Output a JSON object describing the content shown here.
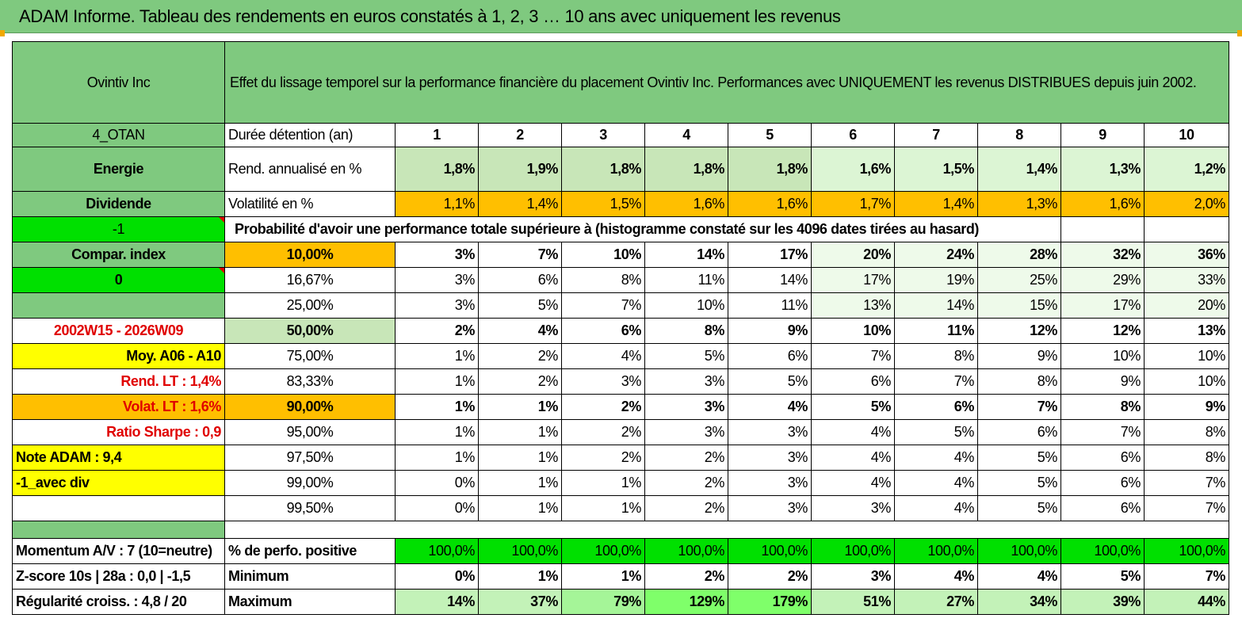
{
  "title": "ADAM Informe. Tableau des rendements en euros constatés à 1, 2, 3 … 10 ans avec uniquement les revenus",
  "colors": {
    "header_green": "#7fc97f",
    "bright_green": "#00e000",
    "orange": "#ffbf00",
    "yellow": "#ffff00",
    "red": "#e00000"
  },
  "header": {
    "company": "Ovintiv Inc",
    "description": "Effet du lissage temporel sur la performance financière du placement Ovintiv Inc. Performances avec UNIQUEMENT les revenus DISTRIBUES depuis juin 2002."
  },
  "left": {
    "code": "4_OTAN",
    "sector": "Energie",
    "type": "Dividende",
    "value_a": "-1",
    "compar": "Compar. index",
    "value_b": "0",
    "period": "2002W15 - 2026W09",
    "moy": "Moy. A06 - A10",
    "rend_lt": "Rend. LT :   1,4%",
    "volat_lt": "Volat. LT :   1,6%",
    "sharpe": "Ratio Sharpe :    0,9",
    "note": "Note ADAM : 9,4",
    "avec_div": "-1_avec div",
    "momentum": "Momentum A/V : 7 (10=neutre)",
    "zscore": "Z-score 10s | 28a : 0,0 | -1,5",
    "regularite": "Régularité croiss. : 4,8 / 20"
  },
  "labels": {
    "duree": "Durée détention (an)",
    "rend": "Rend. annualisé en %",
    "volat": "Volatilité en %",
    "proba": "Probabilité d'avoir une performance totale supérieure à (histogramme constaté sur les 4096 dates tirées au hasard)",
    "perf_pos": "% de perfo. positive",
    "minimum": "Minimum",
    "maximum": "Maximum"
  },
  "years": [
    "1",
    "2",
    "3",
    "4",
    "5",
    "6",
    "7",
    "8",
    "9",
    "10"
  ],
  "rend": [
    "1,8%",
    "1,9%",
    "1,8%",
    "1,8%",
    "1,8%",
    "1,6%",
    "1,5%",
    "1,4%",
    "1,3%",
    "1,2%"
  ],
  "volat": [
    "1,1%",
    "1,4%",
    "1,5%",
    "1,6%",
    "1,6%",
    "1,7%",
    "1,4%",
    "1,3%",
    "1,6%",
    "2,0%"
  ],
  "proba_rows": [
    {
      "pct": "10,00%",
      "values": [
        "3%",
        "7%",
        "10%",
        "14%",
        "17%",
        "20%",
        "24%",
        "28%",
        "32%",
        "36%"
      ]
    },
    {
      "pct": "16,67%",
      "values": [
        "3%",
        "6%",
        "8%",
        "11%",
        "14%",
        "17%",
        "19%",
        "25%",
        "29%",
        "33%"
      ]
    },
    {
      "pct": "25,00%",
      "values": [
        "3%",
        "5%",
        "7%",
        "10%",
        "11%",
        "13%",
        "14%",
        "15%",
        "17%",
        "20%"
      ]
    },
    {
      "pct": "50,00%",
      "values": [
        "2%",
        "4%",
        "6%",
        "8%",
        "9%",
        "10%",
        "11%",
        "12%",
        "12%",
        "13%"
      ]
    },
    {
      "pct": "75,00%",
      "values": [
        "1%",
        "2%",
        "4%",
        "5%",
        "6%",
        "7%",
        "8%",
        "9%",
        "10%",
        "10%"
      ]
    },
    {
      "pct": "83,33%",
      "values": [
        "1%",
        "2%",
        "3%",
        "3%",
        "5%",
        "6%",
        "7%",
        "8%",
        "9%",
        "10%"
      ]
    },
    {
      "pct": "90,00%",
      "values": [
        "1%",
        "1%",
        "2%",
        "3%",
        "4%",
        "5%",
        "6%",
        "7%",
        "8%",
        "9%"
      ]
    },
    {
      "pct": "95,00%",
      "values": [
        "1%",
        "1%",
        "2%",
        "3%",
        "3%",
        "4%",
        "5%",
        "6%",
        "7%",
        "8%"
      ]
    },
    {
      "pct": "97,50%",
      "values": [
        "1%",
        "1%",
        "2%",
        "2%",
        "3%",
        "4%",
        "4%",
        "5%",
        "6%",
        "8%"
      ]
    },
    {
      "pct": "99,00%",
      "values": [
        "0%",
        "1%",
        "1%",
        "2%",
        "3%",
        "4%",
        "4%",
        "5%",
        "6%",
        "7%"
      ]
    },
    {
      "pct": "99,50%",
      "values": [
        "0%",
        "1%",
        "1%",
        "2%",
        "3%",
        "3%",
        "4%",
        "5%",
        "6%",
        "7%"
      ]
    }
  ],
  "perf_pos": [
    "100,0%",
    "100,0%",
    "100,0%",
    "100,0%",
    "100,0%",
    "100,0%",
    "100,0%",
    "100,0%",
    "100,0%",
    "100,0%"
  ],
  "minimum": [
    "0%",
    "1%",
    "1%",
    "2%",
    "2%",
    "3%",
    "4%",
    "4%",
    "5%",
    "7%"
  ],
  "maximum": [
    "14%",
    "37%",
    "79%",
    "129%",
    "179%",
    "51%",
    "27%",
    "34%",
    "39%",
    "44%"
  ]
}
